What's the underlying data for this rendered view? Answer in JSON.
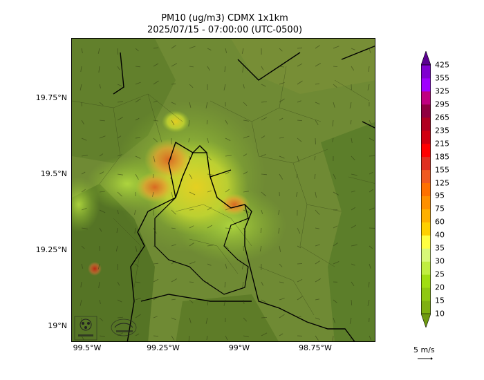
{
  "title": "PM10 (ug/m3) CDMX 1x1km",
  "subtitle": "2025/07/15 - 07:00:00 (UTC-0500)",
  "map": {
    "lat_labels": [
      "19.75°N",
      "19.5°N",
      "19.25°N",
      "19°N"
    ],
    "lon_labels": [
      "99.5°W",
      "99.25°W",
      "99°W",
      "98.75°W"
    ],
    "base_color": "#6f8a34",
    "logos": [
      "sedema-logo",
      "aire-logo"
    ]
  },
  "colorbar": {
    "levels": [
      "10",
      "15",
      "20",
      "25",
      "30",
      "35",
      "40",
      "60",
      "75",
      "95",
      "125",
      "155",
      "185",
      "215",
      "235",
      "265",
      "295",
      "325",
      "355",
      "425"
    ],
    "colors": [
      "#6e9a10",
      "#7fb010",
      "#8fc810",
      "#a0de10",
      "#c0ee40",
      "#d8f878",
      "#ffff40",
      "#ffd000",
      "#ffb000",
      "#ff9000",
      "#ff7000",
      "#f05a20",
      "#e03020",
      "#ff0000",
      "#d00010",
      "#b00020",
      "#900040",
      "#c00080",
      "#a000ff",
      "#8000d0",
      "#5a0090"
    ]
  },
  "wind_key": {
    "label": "5 m/s"
  }
}
